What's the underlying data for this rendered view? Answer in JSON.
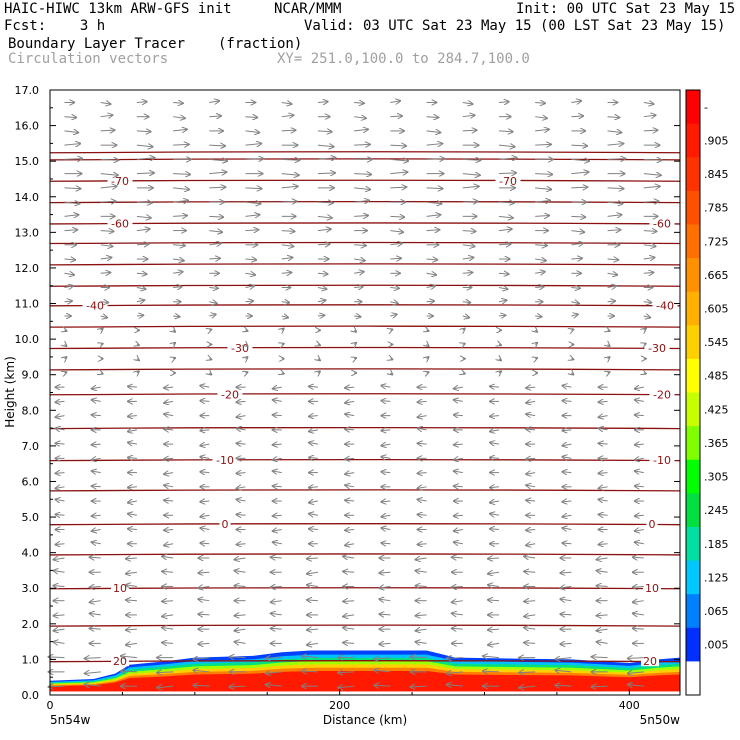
{
  "header": {
    "title": "HAIC-HIWC 13km ARW-GFS init",
    "org": "NCAR/MMM",
    "init": "Init: 00 UTC Sat 23 May 15",
    "fcst": "Fcst:    3 h",
    "valid": "Valid: 03 UTC Sat 23 May 15 (00 LST Sat 23 May 15)",
    "field1_name": "Boundary Layer Tracer",
    "field1_units": "(fraction)",
    "field2_name": "Circulation vectors",
    "xy_info": "XY= 251.0,100.0 to 284.7,100.0"
  },
  "chart_data": {
    "type": "heatmap",
    "xlabel": "Distance (km)",
    "ylabel": "Height (km)",
    "xlim": [
      0,
      435
    ],
    "ylim": [
      0,
      17
    ],
    "x_ticks": [
      0,
      200,
      400
    ],
    "y_ticks": [
      "0.0",
      "1.0",
      "2.0",
      "3.0",
      "4.0",
      "5.0",
      "6.0",
      "7.0",
      "8.0",
      "9.0",
      "10.0",
      "11.0",
      "12.0",
      "13.0",
      "14.0",
      "15.0",
      "16.0",
      "17.0"
    ],
    "x_left_label": "5n54w",
    "x_right_label": "5n50w",
    "colorbar": {
      "labels": [
        "-",
        ".905",
        ".845",
        ".785",
        ".725",
        ".665",
        ".605",
        ".545",
        ".485",
        ".425",
        ".365",
        ".305",
        ".245",
        ".185",
        ".125",
        ".065",
        ".005"
      ],
      "colors": [
        "#ff0000",
        "#ff1a00",
        "#ff3300",
        "#ff5000",
        "#ff7000",
        "#ff9000",
        "#ffb000",
        "#ffd000",
        "#ffff00",
        "#c8ff00",
        "#80ff00",
        "#00ff00",
        "#00e040",
        "#00e0a0",
        "#00c8ff",
        "#0080ff",
        "#0030ff",
        "#ffffff"
      ]
    },
    "temperature_contours": [
      {
        "label": "20",
        "height": 0.95
      },
      {
        "label": "10",
        "height": 3.0
      },
      {
        "label": "0",
        "height": 4.8
      },
      {
        "label": "-10",
        "height": 6.6
      },
      {
        "label": "-20",
        "height": 8.45
      },
      {
        "label": "-30",
        "height": 9.75
      },
      {
        "label": "-40",
        "height": 10.95
      },
      {
        "label": "-60",
        "height": 13.25
      },
      {
        "label": "-70",
        "height": 14.45
      }
    ],
    "unlabeled_contour_heights": [
      1.95,
      3.95,
      5.75,
      7.5,
      9.15,
      10.35,
      11.5,
      12.1,
      12.7,
      13.85,
      15.05,
      15.25
    ],
    "tracer_layer": {
      "surface_km": 0.1,
      "top_km": [
        [
          0,
          0.4
        ],
        [
          30,
          0.45
        ],
        [
          45,
          0.6
        ],
        [
          55,
          0.85
        ],
        [
          80,
          0.95
        ],
        [
          100,
          1.05
        ],
        [
          140,
          1.1
        ],
        [
          160,
          1.2
        ],
        [
          180,
          1.25
        ],
        [
          260,
          1.25
        ],
        [
          280,
          1.05
        ],
        [
          360,
          1.0
        ],
        [
          380,
          0.95
        ],
        [
          400,
          0.9
        ],
        [
          420,
          1.0
        ],
        [
          435,
          1.05
        ]
      ]
    },
    "vectors": {
      "upper_flow": "westerly, strongest near 15 km",
      "lower_flow": "easterly, weak from 2 km to 9 km",
      "note": "near-surface vectors strong easterly inside tracer layer"
    }
  }
}
